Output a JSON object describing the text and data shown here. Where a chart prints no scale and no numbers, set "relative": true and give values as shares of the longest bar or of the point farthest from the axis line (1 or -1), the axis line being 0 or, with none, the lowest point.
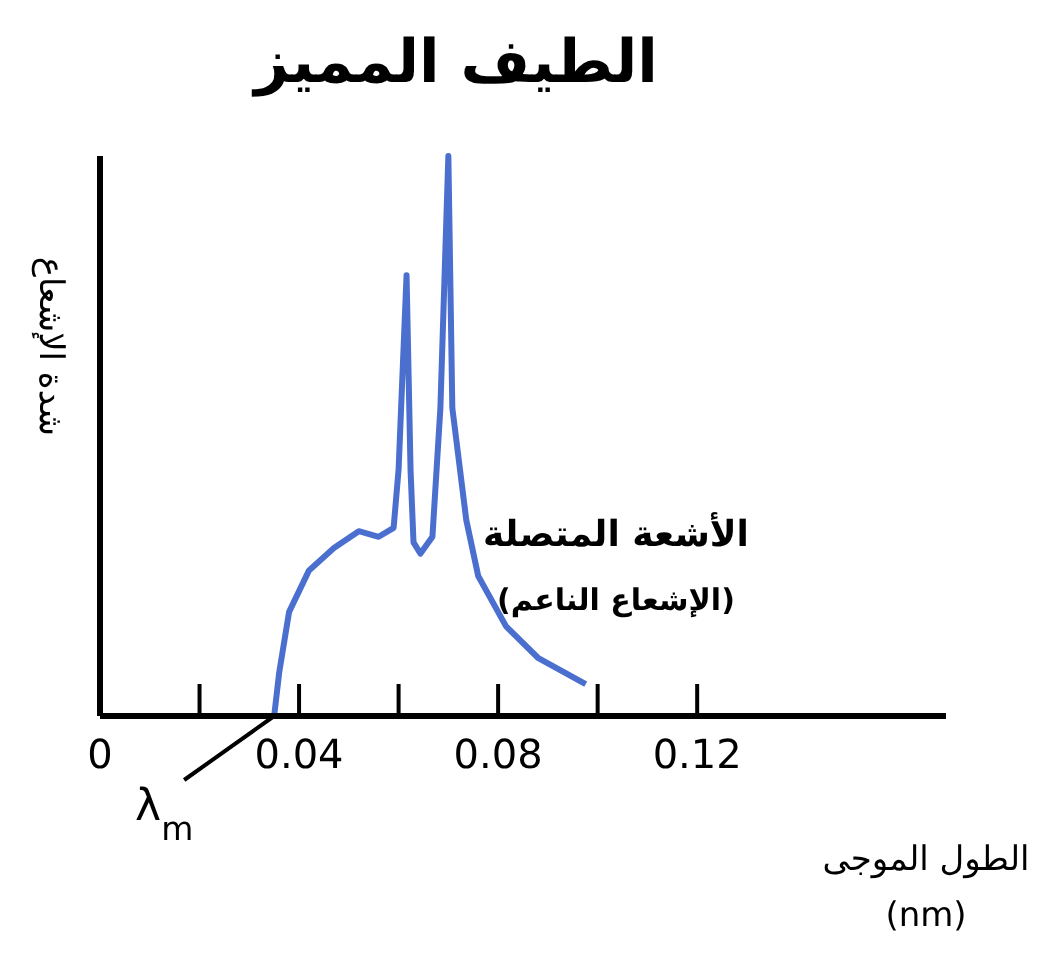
{
  "chart_data": {
    "type": "line",
    "title": "الطيف المميز",
    "xlabel": "الطول الموجى (nm)",
    "ylabel": "شدة الإشعاع",
    "relative": true,
    "marker": "none",
    "xlim": [
      0,
      0.17
    ],
    "xticks": [
      0,
      {
        "value": 0.02,
        "label": null
      },
      0.04,
      {
        "value": 0.06,
        "label": null
      },
      0.08,
      {
        "value": 0.1,
        "label": null
      },
      0.12
    ],
    "annotations": [
      "الأشعة المتصلة",
      "(الإشعاع الناعم)",
      {
        "text": "λ$_{m}$",
        "x": 0.035,
        "y": 0
      }
    ],
    "series": [
      {
        "color": "#4a6fcf",
        "x": [
          0.035,
          0.036,
          0.038,
          0.042,
          0.047,
          0.052,
          0.056,
          0.059,
          0.06,
          0.0616,
          0.0624,
          0.063,
          0.0644,
          0.0668,
          0.0684,
          0.07,
          0.0708,
          0.0736,
          0.076,
          0.0816,
          0.088,
          0.0976
        ],
        "values": [
          0,
          0.077,
          0.186,
          0.26,
          0.3,
          0.33,
          0.32,
          0.336,
          0.44,
          0.787,
          0.44,
          0.31,
          0.29,
          0.32,
          0.55,
          1,
          0.55,
          0.35,
          0.25,
          0.16,
          0.104,
          0.057
        ]
      }
    ]
  }
}
